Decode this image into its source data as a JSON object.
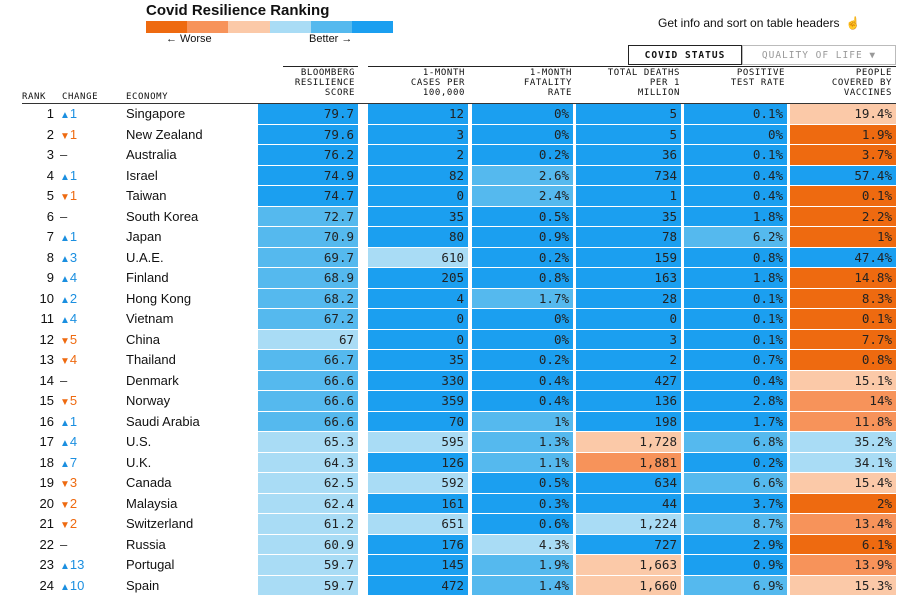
{
  "header": {
    "title": "Covid Resilience Ranking",
    "worse_label": "← Worse",
    "better_label": "Better →",
    "info_text": "Get info and sort on table headers",
    "legend_colors": [
      "#ee6a10",
      "#f7935a",
      "#fbc9a8",
      "#a9dcf5",
      "#55b9ee",
      "#1b9ff0"
    ]
  },
  "tabs": [
    {
      "label": "COVID STATUS",
      "active": true
    },
    {
      "label": "QUALITY OF LIFE ▼",
      "active": false
    }
  ],
  "columns": {
    "rank": "RANK",
    "change": "CHANGE",
    "economy": "ECONOMY",
    "score": "BLOOMBERG\nRESILIENCE\nSCORE",
    "cases": "1-MONTH\nCASES PER\n100,000",
    "fatality": "1-MONTH\nFATALITY\nRATE",
    "deaths": "TOTAL DEATHS\nPER 1\nMILLION",
    "positive": "POSITIVE\nTEST RATE",
    "vaccines": "PEOPLE\nCOVERED BY\nVACCINES"
  },
  "colors": {
    "dark_blue": "#1b9ff0",
    "mid_blue": "#55b9ee",
    "light_blue": "#a9dcf5",
    "light_orange": "#fbc9a8",
    "mid_orange": "#f7935a",
    "dark_orange": "#ee6a10",
    "up": "#1b8fe0",
    "down": "#ee6a10"
  },
  "chart_data": {
    "type": "table",
    "title": "Covid Resilience Ranking",
    "rows": [
      {
        "rank": "1",
        "dir": "up",
        "chg": "1",
        "economy": "Singapore",
        "score": "79.7",
        "cases": "12",
        "fatality": "0%",
        "deaths": "5",
        "positive": "0.1%",
        "vaccines": "19.4%",
        "tones": [
          "DB",
          "DB",
          "DB",
          "DB",
          "DB",
          "LO"
        ]
      },
      {
        "rank": "2",
        "dir": "down",
        "chg": "1",
        "economy": "New Zealand",
        "score": "79.6",
        "cases": "3",
        "fatality": "0%",
        "deaths": "5",
        "positive": "0%",
        "vaccines": "1.9%",
        "tones": [
          "DB",
          "DB",
          "DB",
          "DB",
          "DB",
          "DO"
        ]
      },
      {
        "rank": "3",
        "dir": "flat",
        "chg": "",
        "economy": "Australia",
        "score": "76.2",
        "cases": "2",
        "fatality": "0.2%",
        "deaths": "36",
        "positive": "0.1%",
        "vaccines": "3.7%",
        "tones": [
          "DB",
          "DB",
          "DB",
          "DB",
          "DB",
          "DO"
        ]
      },
      {
        "rank": "4",
        "dir": "up",
        "chg": "1",
        "economy": "Israel",
        "score": "74.9",
        "cases": "82",
        "fatality": "2.6%",
        "deaths": "734",
        "positive": "0.4%",
        "vaccines": "57.4%",
        "tones": [
          "DB",
          "DB",
          "MB",
          "DB",
          "DB",
          "DB"
        ]
      },
      {
        "rank": "5",
        "dir": "down",
        "chg": "1",
        "economy": "Taiwan",
        "score": "74.7",
        "cases": "0",
        "fatality": "2.4%",
        "deaths": "1",
        "positive": "0.4%",
        "vaccines": "0.1%",
        "tones": [
          "DB",
          "DB",
          "MB",
          "DB",
          "DB",
          "DO"
        ]
      },
      {
        "rank": "6",
        "dir": "flat",
        "chg": "",
        "economy": "South Korea",
        "score": "72.7",
        "cases": "35",
        "fatality": "0.5%",
        "deaths": "35",
        "positive": "1.8%",
        "vaccines": "2.2%",
        "tones": [
          "MB",
          "DB",
          "DB",
          "DB",
          "DB",
          "DO"
        ]
      },
      {
        "rank": "7",
        "dir": "up",
        "chg": "1",
        "economy": "Japan",
        "score": "70.9",
        "cases": "80",
        "fatality": "0.9%",
        "deaths": "78",
        "positive": "6.2%",
        "vaccines": "1%",
        "tones": [
          "MB",
          "DB",
          "DB",
          "DB",
          "MB",
          "DO"
        ]
      },
      {
        "rank": "8",
        "dir": "up",
        "chg": "3",
        "economy": "U.A.E.",
        "score": "69.7",
        "cases": "610",
        "fatality": "0.2%",
        "deaths": "159",
        "positive": "0.8%",
        "vaccines": "47.4%",
        "tones": [
          "MB",
          "LB",
          "DB",
          "DB",
          "DB",
          "DB"
        ]
      },
      {
        "rank": "9",
        "dir": "up",
        "chg": "4",
        "economy": "Finland",
        "score": "68.9",
        "cases": "205",
        "fatality": "0.8%",
        "deaths": "163",
        "positive": "1.8%",
        "vaccines": "14.8%",
        "tones": [
          "MB",
          "DB",
          "DB",
          "DB",
          "DB",
          "DO"
        ]
      },
      {
        "rank": "10",
        "dir": "up",
        "chg": "2",
        "economy": "Hong Kong",
        "score": "68.2",
        "cases": "4",
        "fatality": "1.7%",
        "deaths": "28",
        "positive": "0.1%",
        "vaccines": "8.3%",
        "tones": [
          "MB",
          "DB",
          "MB",
          "DB",
          "DB",
          "DO"
        ]
      },
      {
        "rank": "11",
        "dir": "up",
        "chg": "4",
        "economy": "Vietnam",
        "score": "67.2",
        "cases": "0",
        "fatality": "0%",
        "deaths": "0",
        "positive": "0.1%",
        "vaccines": "0.1%",
        "tones": [
          "MB",
          "DB",
          "DB",
          "DB",
          "DB",
          "DO"
        ]
      },
      {
        "rank": "12",
        "dir": "down",
        "chg": "5",
        "economy": "China",
        "score": "67",
        "cases": "0",
        "fatality": "0%",
        "deaths": "3",
        "positive": "0.1%",
        "vaccines": "7.7%",
        "tones": [
          "LB",
          "DB",
          "DB",
          "DB",
          "DB",
          "DO"
        ]
      },
      {
        "rank": "13",
        "dir": "down",
        "chg": "4",
        "economy": "Thailand",
        "score": "66.7",
        "cases": "35",
        "fatality": "0.2%",
        "deaths": "2",
        "positive": "0.7%",
        "vaccines": "0.8%",
        "tones": [
          "MB",
          "DB",
          "DB",
          "DB",
          "DB",
          "DO"
        ]
      },
      {
        "rank": "14",
        "dir": "flat",
        "chg": "",
        "economy": "Denmark",
        "score": "66.6",
        "cases": "330",
        "fatality": "0.4%",
        "deaths": "427",
        "positive": "0.4%",
        "vaccines": "15.1%",
        "tones": [
          "MB",
          "DB",
          "DB",
          "DB",
          "DB",
          "LO"
        ]
      },
      {
        "rank": "15",
        "dir": "down",
        "chg": "5",
        "economy": "Norway",
        "score": "66.6",
        "cases": "359",
        "fatality": "0.4%",
        "deaths": "136",
        "positive": "2.8%",
        "vaccines": "14%",
        "tones": [
          "MB",
          "DB",
          "DB",
          "DB",
          "DB",
          "MO"
        ]
      },
      {
        "rank": "16",
        "dir": "up",
        "chg": "1",
        "economy": "Saudi Arabia",
        "score": "66.6",
        "cases": "70",
        "fatality": "1%",
        "deaths": "198",
        "positive": "1.7%",
        "vaccines": "11.8%",
        "tones": [
          "MB",
          "DB",
          "MB",
          "DB",
          "DB",
          "MO"
        ]
      },
      {
        "rank": "17",
        "dir": "up",
        "chg": "4",
        "economy": "U.S.",
        "score": "65.3",
        "cases": "595",
        "fatality": "1.3%",
        "deaths": "1,728",
        "positive": "6.8%",
        "vaccines": "35.2%",
        "tones": [
          "LB",
          "LB",
          "MB",
          "LO",
          "MB",
          "LB"
        ]
      },
      {
        "rank": "18",
        "dir": "up",
        "chg": "7",
        "economy": "U.K.",
        "score": "64.3",
        "cases": "126",
        "fatality": "1.1%",
        "deaths": "1,881",
        "positive": "0.2%",
        "vaccines": "34.1%",
        "tones": [
          "LB",
          "DB",
          "MB",
          "MO",
          "DB",
          "LB"
        ]
      },
      {
        "rank": "19",
        "dir": "down",
        "chg": "3",
        "economy": "Canada",
        "score": "62.5",
        "cases": "592",
        "fatality": "0.5%",
        "deaths": "634",
        "positive": "6.6%",
        "vaccines": "15.4%",
        "tones": [
          "LB",
          "LB",
          "DB",
          "DB",
          "MB",
          "LO"
        ]
      },
      {
        "rank": "20",
        "dir": "down",
        "chg": "2",
        "economy": "Malaysia",
        "score": "62.4",
        "cases": "161",
        "fatality": "0.3%",
        "deaths": "44",
        "positive": "3.7%",
        "vaccines": "2%",
        "tones": [
          "LB",
          "DB",
          "DB",
          "DB",
          "DB",
          "DO"
        ]
      },
      {
        "rank": "21",
        "dir": "down",
        "chg": "2",
        "economy": "Switzerland",
        "score": "61.2",
        "cases": "651",
        "fatality": "0.6%",
        "deaths": "1,224",
        "positive": "8.7%",
        "vaccines": "13.4%",
        "tones": [
          "LB",
          "LB",
          "DB",
          "LB",
          "MB",
          "MO"
        ]
      },
      {
        "rank": "22",
        "dir": "flat",
        "chg": "",
        "economy": "Russia",
        "score": "60.9",
        "cases": "176",
        "fatality": "4.3%",
        "deaths": "727",
        "positive": "2.9%",
        "vaccines": "6.1%",
        "tones": [
          "LB",
          "DB",
          "LB",
          "DB",
          "DB",
          "DO"
        ]
      },
      {
        "rank": "23",
        "dir": "up",
        "chg": "13",
        "economy": "Portugal",
        "score": "59.7",
        "cases": "145",
        "fatality": "1.9%",
        "deaths": "1,663",
        "positive": "0.9%",
        "vaccines": "13.9%",
        "tones": [
          "LB",
          "DB",
          "MB",
          "LO",
          "DB",
          "MO"
        ]
      },
      {
        "rank": "24",
        "dir": "up",
        "chg": "10",
        "economy": "Spain",
        "score": "59.7",
        "cases": "472",
        "fatality": "1.4%",
        "deaths": "1,660",
        "positive": "6.9%",
        "vaccines": "15.3%",
        "tones": [
          "LB",
          "DB",
          "MB",
          "LO",
          "MB",
          "LO"
        ]
      }
    ]
  }
}
